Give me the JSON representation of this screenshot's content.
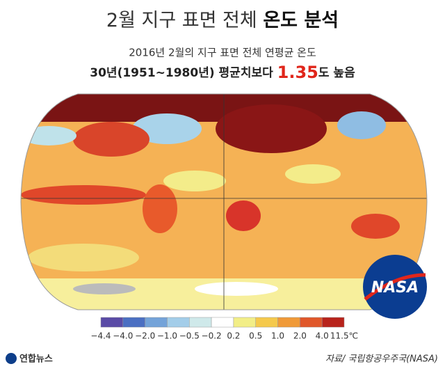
{
  "title": {
    "normal": "2월 지구 표면 전체",
    "bold": "온도 분석"
  },
  "subtitle": {
    "line1": "2016년 2월의 지구 표면 전체 연평균 온도",
    "line2_before": "30년(1951∼1980년) 평균치보다",
    "line2_highlight": "1.35",
    "line2_after": "도 높음"
  },
  "legend": {
    "labels": [
      "−4.4",
      "−4.0",
      "−2.0",
      "−1.0",
      "−0.5",
      "−0.2",
      "0.2",
      "0.5",
      "1.0",
      "2.0",
      "4.0",
      "11.5℃"
    ],
    "colors": [
      "#5a4ba6",
      "#4b6fc2",
      "#74a3d9",
      "#a3cde9",
      "#cfe9ea",
      "#ffffff",
      "#f2ee87",
      "#f5c94c",
      "#f09a38",
      "#e0572a",
      "#b8231b"
    ]
  },
  "nasa_logo": "NASA",
  "footer": {
    "agency": "연합뉴스",
    "source": "자료/ 국립항공우주국(NASA)"
  }
}
